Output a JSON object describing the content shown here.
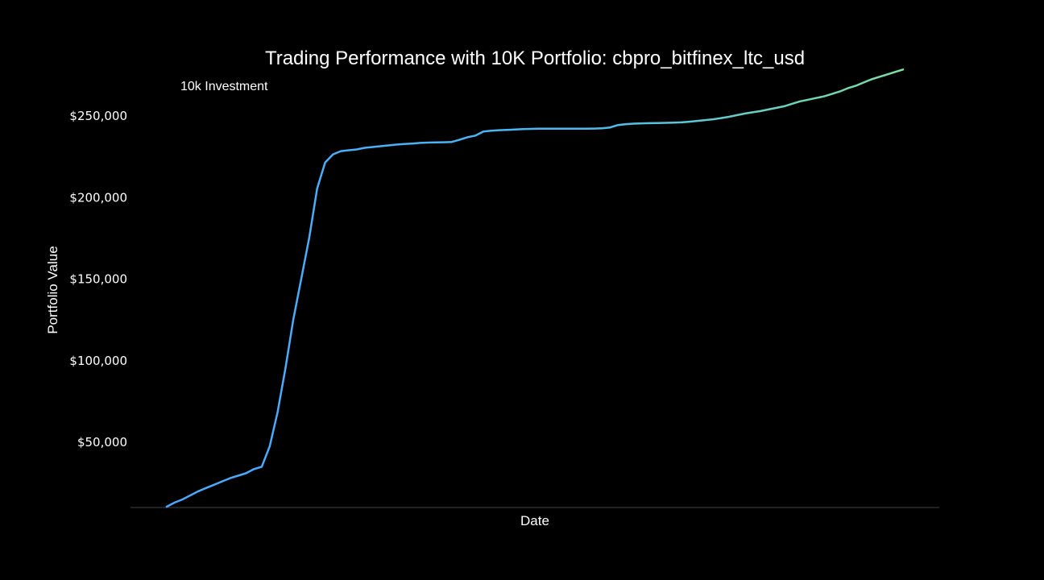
{
  "chart_data": {
    "type": "line",
    "title": "Trading Performance with 10K Portfolio: cbpro_bitfinex_ltc_usd",
    "xlabel": "Date",
    "ylabel": "Portfolio Value",
    "legend": {
      "position": "top-left",
      "entries": [
        "10k Investment"
      ]
    },
    "grid": false,
    "x_ticks_shown": false,
    "y_tick_labels": [
      "$50,000",
      "$100,000",
      "$150,000",
      "$200,000",
      "$250,000"
    ],
    "y_ticks": [
      50000,
      100000,
      150000,
      200000,
      250000
    ],
    "ylim": [
      10000,
      280000
    ],
    "series": [
      {
        "name": "10k Investment",
        "color_start": "#4aa8ff",
        "color_end": "#7ee0a0",
        "values": [
          10000,
          12500,
          14500,
          17000,
          19500,
          21500,
          23500,
          25500,
          27500,
          29000,
          30500,
          33000,
          34500,
          47000,
          68000,
          95000,
          125000,
          150000,
          175000,
          205000,
          221000,
          226000,
          228000,
          228500,
          229000,
          230000,
          230500,
          231000,
          231500,
          232000,
          232300,
          232600,
          233000,
          233200,
          233300,
          233400,
          233600,
          235000,
          236500,
          237500,
          240000,
          240500,
          240800,
          241000,
          241200,
          241500,
          241600,
          241700,
          241700,
          241700,
          241700,
          241700,
          241700,
          241700,
          241800,
          242000,
          242500,
          244000,
          244500,
          244800,
          245000,
          245100,
          245200,
          245300,
          245400,
          245600,
          246000,
          246500,
          247000,
          247500,
          248200,
          249000,
          250000,
          251000,
          251800,
          252500,
          253500,
          254500,
          255500,
          257000,
          258500,
          259500,
          260500,
          261500,
          263000,
          264500,
          266500,
          268000,
          270000,
          272000,
          273500,
          275000,
          276500,
          278000
        ]
      }
    ]
  }
}
